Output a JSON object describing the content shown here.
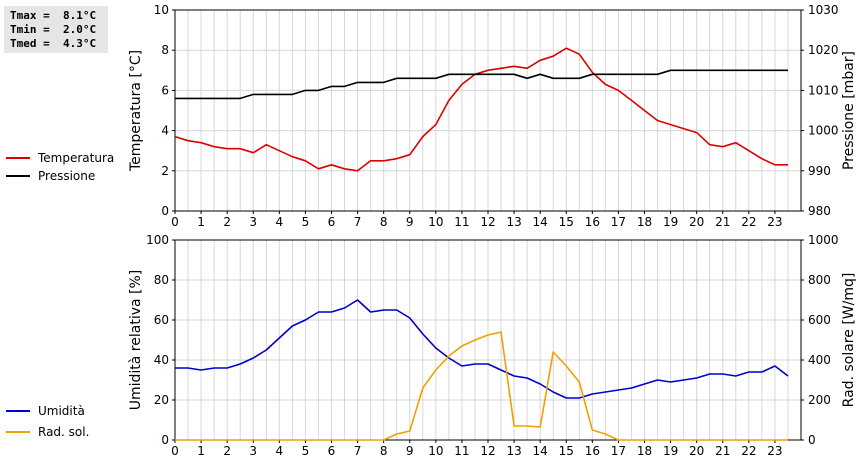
{
  "stats": [
    {
      "label": "Tmax =",
      "value": "8.1°C"
    },
    {
      "label": "Tmin =",
      "value": "2.0°C"
    },
    {
      "label": "Tmed =",
      "value": "4.3°C"
    }
  ],
  "chart_data": [
    {
      "type": "line",
      "x": [
        0,
        0.5,
        1,
        1.5,
        2,
        2.5,
        3,
        3.5,
        4,
        4.5,
        5,
        5.5,
        6,
        6.5,
        7,
        7.5,
        8,
        8.5,
        9,
        9.5,
        10,
        10.5,
        11,
        11.5,
        12,
        12.5,
        13,
        13.5,
        14,
        14.5,
        15,
        15.5,
        16,
        16.5,
        17,
        17.5,
        18,
        18.5,
        19,
        19.5,
        20,
        20.5,
        21,
        21.5,
        22,
        22.5,
        23,
        23.5
      ],
      "xticks": [
        "0",
        "1",
        "2",
        "3",
        "4",
        "5",
        "6",
        "7",
        "8",
        "9",
        "10",
        "11",
        "12",
        "13",
        "14",
        "15",
        "16",
        "17",
        "18",
        "19",
        "20",
        "21",
        "22",
        "23"
      ],
      "xlim": [
        0,
        24
      ],
      "ylabel": "Temperatura [°C]",
      "ylim": [
        0,
        10
      ],
      "yticks": [
        "0",
        "2",
        "4",
        "6",
        "8",
        "10"
      ],
      "y2label": "Pressione [mbar]",
      "y2lim": [
        980,
        1030
      ],
      "y2ticks": [
        "980",
        "990",
        "1000",
        "1010",
        "1020",
        "1030"
      ],
      "grid": true,
      "legend_position": "left",
      "series": [
        {
          "name": "Temperatura",
          "color": "#dd0000",
          "axis": "left",
          "values": [
            3.7,
            3.5,
            3.4,
            3.2,
            3.1,
            3.1,
            2.9,
            3.3,
            3.0,
            2.7,
            2.5,
            2.1,
            2.3,
            2.1,
            2.0,
            2.5,
            2.5,
            2.6,
            2.8,
            3.7,
            4.3,
            5.5,
            6.3,
            6.8,
            7.0,
            7.1,
            7.2,
            7.1,
            7.5,
            7.7,
            8.1,
            7.8,
            6.9,
            6.3,
            6.0,
            5.5,
            5.0,
            4.5,
            4.3,
            4.1,
            3.9,
            3.3,
            3.2,
            3.4,
            3.0,
            2.6,
            2.3,
            2.3
          ]
        },
        {
          "name": "Pressione",
          "color": "#000000",
          "axis": "right",
          "values": [
            1008,
            1008,
            1008,
            1008,
            1008,
            1008,
            1009,
            1009,
            1009,
            1009,
            1010,
            1010,
            1011,
            1011,
            1012,
            1012,
            1012,
            1013,
            1013,
            1013,
            1013,
            1014,
            1014,
            1014,
            1014,
            1014,
            1014,
            1013,
            1014,
            1013,
            1013,
            1013,
            1014,
            1014,
            1014,
            1014,
            1014,
            1014,
            1015,
            1015,
            1015,
            1015,
            1015,
            1015,
            1015,
            1015,
            1015,
            1015
          ]
        }
      ]
    },
    {
      "type": "line",
      "x": [
        0,
        0.5,
        1,
        1.5,
        2,
        2.5,
        3,
        3.5,
        4,
        4.5,
        5,
        5.5,
        6,
        6.5,
        7,
        7.5,
        8,
        8.5,
        9,
        9.5,
        10,
        10.5,
        11,
        11.5,
        12,
        12.5,
        13,
        13.5,
        14,
        14.5,
        15,
        15.5,
        16,
        16.5,
        17,
        17.5,
        18,
        18.5,
        19,
        19.5,
        20,
        20.5,
        21,
        21.5,
        22,
        22.5,
        23,
        23.5
      ],
      "xticks": [
        "0",
        "1",
        "2",
        "3",
        "4",
        "5",
        "6",
        "7",
        "8",
        "9",
        "10",
        "11",
        "12",
        "13",
        "14",
        "15",
        "16",
        "17",
        "18",
        "19",
        "20",
        "21",
        "22",
        "23"
      ],
      "xlim": [
        0,
        24
      ],
      "ylabel": "Umidità relativa [%]",
      "ylim": [
        0,
        100
      ],
      "yticks": [
        "0",
        "20",
        "40",
        "60",
        "80",
        "100"
      ],
      "y2label": "Rad. solare [W/mq]",
      "y2lim": [
        0,
        1000
      ],
      "y2ticks": [
        "0",
        "200",
        "400",
        "600",
        "800",
        "1000"
      ],
      "grid": true,
      "legend_position": "left",
      "series": [
        {
          "name": "Umidità",
          "color": "#0000cc",
          "axis": "left",
          "values": [
            36,
            36,
            35,
            36,
            36,
            38,
            41,
            45,
            51,
            57,
            60,
            64,
            64,
            66,
            70,
            64,
            65,
            65,
            61,
            53,
            46,
            41,
            37,
            38,
            38,
            35,
            32,
            31,
            28,
            24,
            21,
            21,
            23,
            24,
            25,
            26,
            28,
            30,
            29,
            30,
            31,
            33,
            33,
            32,
            34,
            34,
            37,
            32
          ]
        },
        {
          "name": "Rad. sol.",
          "color": "#f0a000",
          "axis": "right",
          "values": [
            0,
            0,
            0,
            0,
            0,
            0,
            0,
            0,
            0,
            0,
            0,
            0,
            0,
            0,
            0,
            0,
            0,
            30,
            45,
            260,
            350,
            420,
            470,
            500,
            525,
            540,
            70,
            70,
            65,
            440,
            370,
            290,
            50,
            30,
            0,
            0,
            0,
            0,
            0,
            0,
            0,
            0,
            0,
            0,
            0,
            0,
            0,
            0
          ]
        }
      ]
    }
  ]
}
